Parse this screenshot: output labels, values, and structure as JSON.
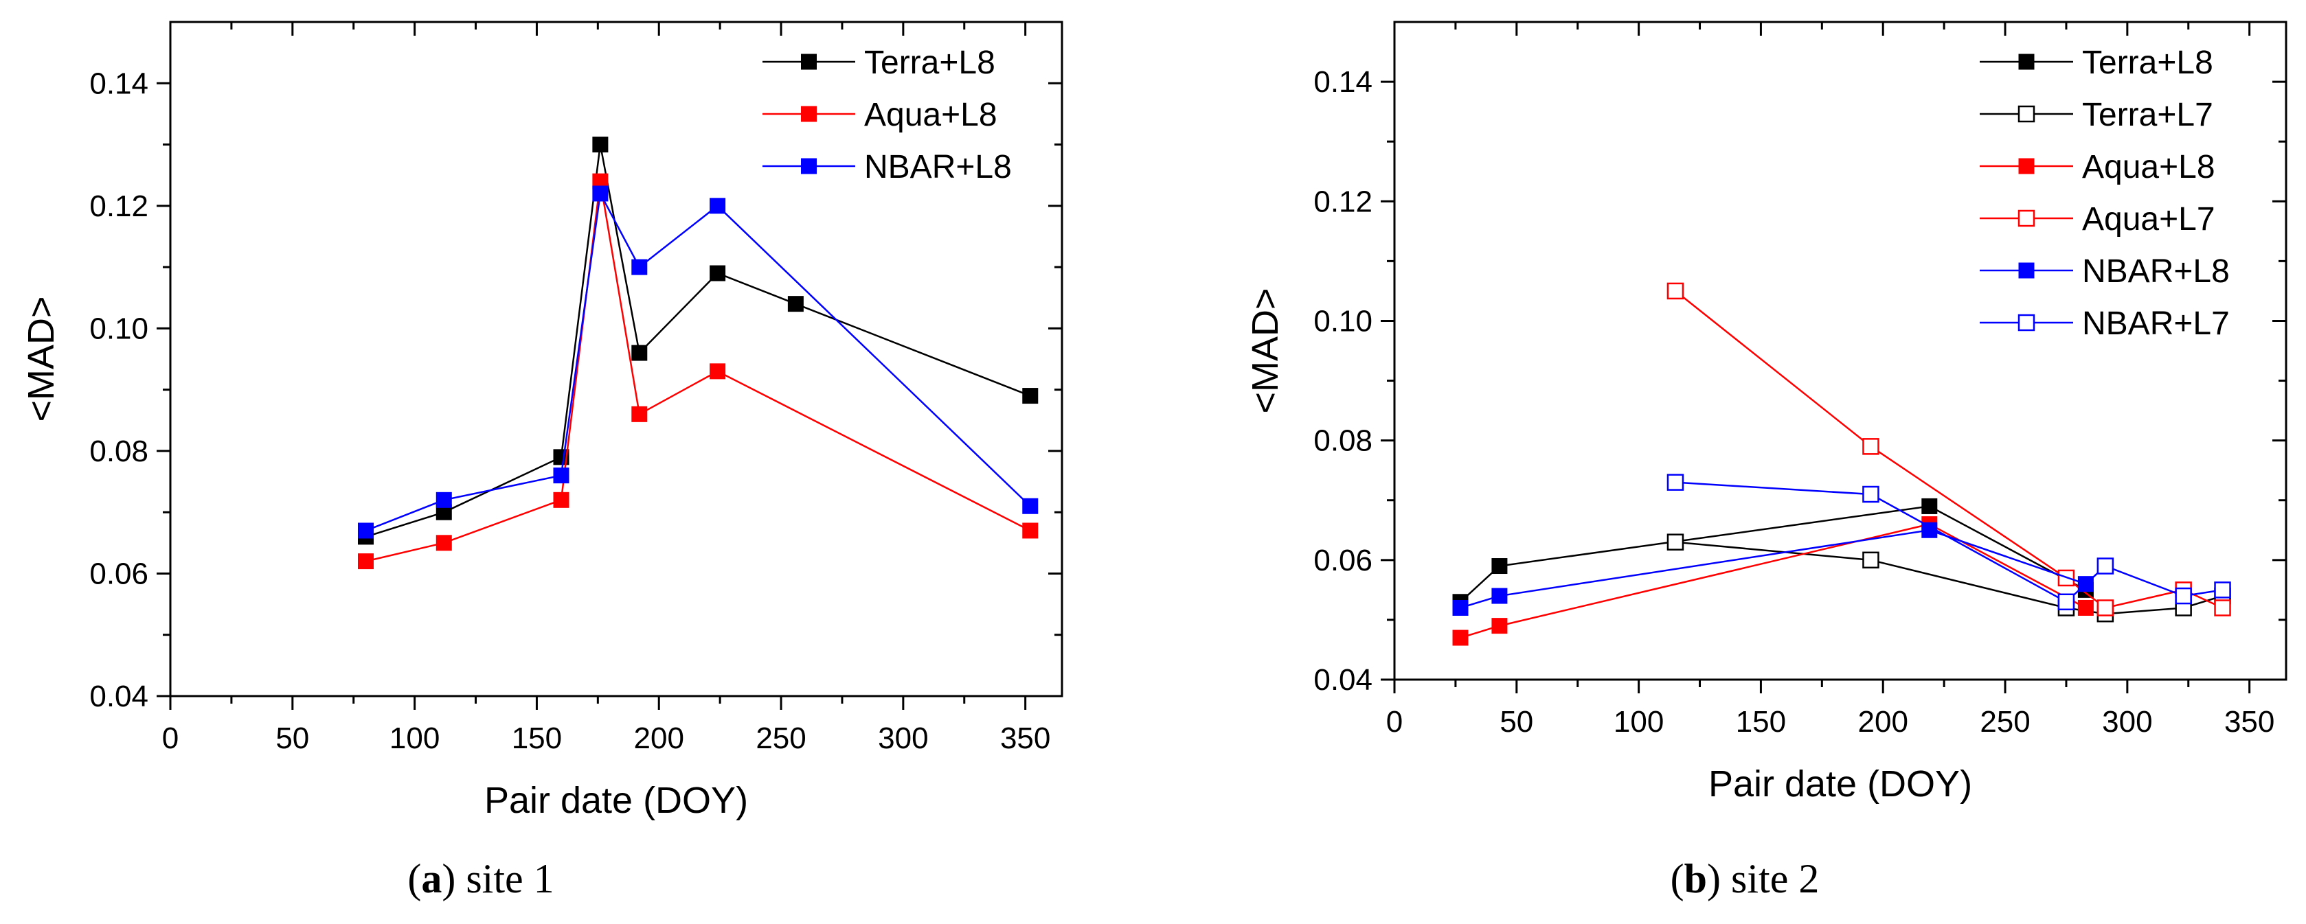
{
  "chart_data": [
    {
      "type": "line",
      "panel_label": "a",
      "caption": "site 1",
      "xlabel": "Pair date (DOY)",
      "ylabel": "<MAD>",
      "xlim": [
        0,
        365
      ],
      "ylim": [
        0.04,
        0.15
      ],
      "xticks": [
        0,
        50,
        100,
        150,
        200,
        250,
        300,
        350
      ],
      "xtick_labels": [
        "0",
        "50",
        "100",
        "150",
        "200",
        "250",
        "300",
        "350"
      ],
      "yticks": [
        0.04,
        0.06,
        0.08,
        0.1,
        0.12,
        0.14
      ],
      "ytick_labels": [
        "0.04",
        "0.06",
        "0.08",
        "0.10",
        "0.12",
        "0.14"
      ],
      "legend_position": "top-right",
      "series": [
        {
          "name": "Terra+L8",
          "color": "#000000",
          "marker": "filled-square",
          "x": [
            80,
            112,
            160,
            176,
            192,
            224,
            256,
            352
          ],
          "y": [
            0.066,
            0.07,
            0.079,
            0.13,
            0.096,
            0.109,
            0.104,
            0.089
          ]
        },
        {
          "name": "Aqua+L8",
          "color": "#ff0000",
          "marker": "filled-square",
          "x": [
            80,
            112,
            160,
            176,
            192,
            224,
            352
          ],
          "y": [
            0.062,
            0.065,
            0.072,
            0.124,
            0.086,
            0.093,
            0.067
          ]
        },
        {
          "name": "NBAR+L8",
          "color": "#0000ff",
          "marker": "filled-square",
          "x": [
            80,
            112,
            160,
            176,
            192,
            224,
            352
          ],
          "y": [
            0.067,
            0.072,
            0.076,
            0.122,
            0.11,
            0.12,
            0.071
          ]
        }
      ]
    },
    {
      "type": "line",
      "panel_label": "b",
      "caption": "site 2",
      "xlabel": "Pair date (DOY)",
      "ylabel": "<MAD>",
      "xlim": [
        0,
        365
      ],
      "ylim": [
        0.04,
        0.15
      ],
      "xticks": [
        0,
        50,
        100,
        150,
        200,
        250,
        300,
        350
      ],
      "xtick_labels": [
        "0",
        "50",
        "100",
        "150",
        "200",
        "250",
        "300",
        "350"
      ],
      "yticks": [
        0.04,
        0.06,
        0.08,
        0.1,
        0.12,
        0.14
      ],
      "ytick_labels": [
        "0.04",
        "0.06",
        "0.08",
        "0.10",
        "0.12",
        "0.14"
      ],
      "legend_position": "top-right",
      "series": [
        {
          "name": "Terra+L8",
          "color": "#000000",
          "marker": "filled-square",
          "x": [
            27,
            43,
            219,
            283
          ],
          "y": [
            0.053,
            0.059,
            0.069,
            0.055
          ]
        },
        {
          "name": "Terra+L7",
          "color": "#000000",
          "marker": "open-square",
          "x": [
            115,
            195,
            275,
            291,
            323,
            339
          ],
          "y": [
            0.063,
            0.06,
            0.052,
            0.051,
            0.052,
            0.054
          ]
        },
        {
          "name": "Aqua+L8",
          "color": "#ff0000",
          "marker": "filled-square",
          "x": [
            27,
            43,
            219,
            283
          ],
          "y": [
            0.047,
            0.049,
            0.066,
            0.052
          ]
        },
        {
          "name": "Aqua+L7",
          "color": "#ff0000",
          "marker": "open-square",
          "x": [
            115,
            195,
            275,
            291,
            323,
            339
          ],
          "y": [
            0.105,
            0.079,
            0.057,
            0.052,
            0.055,
            0.052
          ]
        },
        {
          "name": "NBAR+L8",
          "color": "#0000ff",
          "marker": "filled-square",
          "x": [
            27,
            43,
            219,
            283
          ],
          "y": [
            0.052,
            0.054,
            0.065,
            0.056
          ]
        },
        {
          "name": "NBAR+L7",
          "color": "#0000ff",
          "marker": "open-square",
          "x": [
            115,
            195,
            275,
            291,
            323,
            339
          ],
          "y": [
            0.073,
            0.071,
            0.053,
            0.059,
            0.054,
            0.055
          ]
        }
      ]
    }
  ]
}
